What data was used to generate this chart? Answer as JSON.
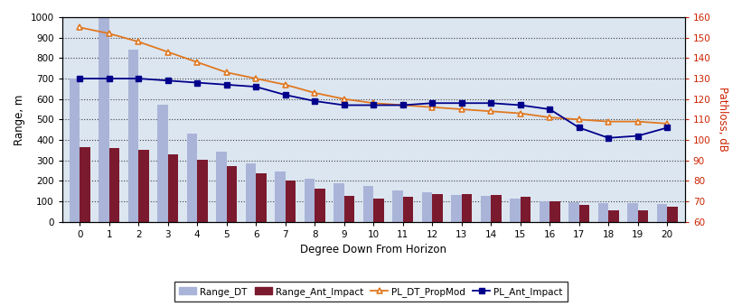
{
  "degrees": [
    0,
    1,
    2,
    3,
    4,
    5,
    6,
    7,
    8,
    9,
    10,
    11,
    12,
    13,
    14,
    15,
    16,
    17,
    18,
    19,
    20
  ],
  "Range_DT": [
    700,
    1050,
    840,
    570,
    430,
    345,
    285,
    245,
    210,
    190,
    175,
    155,
    145,
    130,
    125,
    115,
    100,
    95,
    90,
    90,
    85
  ],
  "Range_Ant_Impact": [
    365,
    362,
    350,
    328,
    305,
    273,
    237,
    202,
    162,
    125,
    113,
    122,
    135,
    135,
    130,
    122,
    100,
    82,
    57,
    57,
    75
  ],
  "PL_DT_PropMod": [
    155,
    152,
    148,
    143,
    138,
    133,
    130,
    127,
    123,
    120,
    118,
    117,
    116,
    115,
    114,
    113,
    111,
    110,
    109,
    109,
    108
  ],
  "PL_Ant_Impact": [
    130,
    130,
    130,
    129,
    128,
    127,
    126,
    122,
    119,
    117,
    117,
    117,
    118,
    118,
    118,
    117,
    115,
    106,
    101,
    102,
    106
  ],
  "bar_color_DT": "#aab4d8",
  "bar_color_Ant": "#7b1a2e",
  "line_color_PL_DT": "#e07820",
  "line_color_PL_Ant": "#00008b",
  "ylabel_left": "Range, m",
  "ylabel_right": "Pathloss, dB",
  "xlabel": "Degree Down From Horizon",
  "ylim_left": [
    0,
    1000
  ],
  "ylim_right": [
    60,
    160
  ],
  "yticks_left": [
    0,
    100,
    200,
    300,
    400,
    500,
    600,
    700,
    800,
    900,
    1000
  ],
  "yticks_right": [
    60,
    70,
    80,
    90,
    100,
    110,
    120,
    130,
    140,
    150,
    160
  ],
  "legend_labels": [
    "Range_DT",
    "Range_Ant_Impact",
    "PL_DT_PropMod",
    "PL_Ant_Impact"
  ],
  "background_color": "#dce6f1",
  "plot_area_color": "#dce6f1",
  "fig_background_color": "#ffffff"
}
